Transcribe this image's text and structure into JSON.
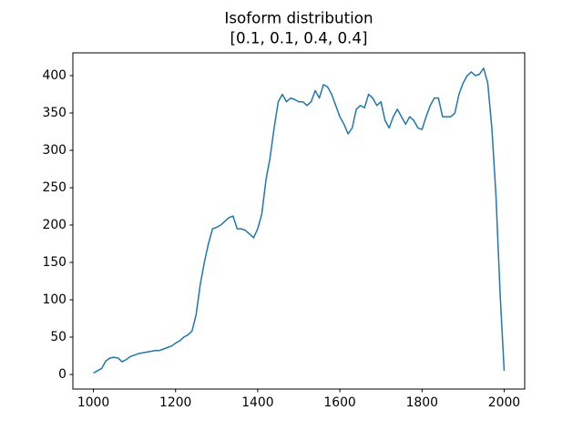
{
  "chart_data": {
    "type": "line",
    "title": "Isoform distribution",
    "subtitle": "[0.1, 0.1, 0.4, 0.4]",
    "x": [
      1000,
      1010,
      1020,
      1030,
      1040,
      1050,
      1060,
      1070,
      1080,
      1090,
      1100,
      1110,
      1120,
      1130,
      1140,
      1150,
      1160,
      1170,
      1180,
      1190,
      1200,
      1210,
      1220,
      1230,
      1240,
      1250,
      1260,
      1270,
      1280,
      1290,
      1300,
      1310,
      1320,
      1330,
      1340,
      1350,
      1360,
      1370,
      1380,
      1390,
      1400,
      1410,
      1420,
      1430,
      1440,
      1450,
      1460,
      1470,
      1480,
      1490,
      1500,
      1510,
      1520,
      1530,
      1540,
      1550,
      1560,
      1570,
      1580,
      1590,
      1600,
      1610,
      1620,
      1630,
      1640,
      1650,
      1660,
      1670,
      1680,
      1690,
      1700,
      1710,
      1720,
      1730,
      1740,
      1750,
      1760,
      1770,
      1780,
      1790,
      1800,
      1810,
      1820,
      1830,
      1840,
      1850,
      1860,
      1870,
      1880,
      1890,
      1900,
      1910,
      1920,
      1930,
      1940,
      1950,
      1960,
      1970,
      1980,
      1990,
      2000
    ],
    "series": [
      {
        "color": "#1f77b4",
        "values": [
          2,
          5,
          8,
          18,
          22,
          23,
          22,
          17,
          20,
          24,
          26,
          28,
          29,
          30,
          31,
          32,
          32,
          34,
          36,
          38,
          42,
          45,
          50,
          53,
          58,
          80,
          120,
          150,
          175,
          195,
          197,
          200,
          205,
          210,
          212,
          195,
          195,
          193,
          188,
          183,
          195,
          215,
          260,
          290,
          330,
          365,
          375,
          365,
          370,
          368,
          365,
          365,
          360,
          365,
          380,
          370,
          388,
          385,
          375,
          360,
          345,
          335,
          322,
          330,
          355,
          360,
          357,
          375,
          370,
          360,
          365,
          340,
          330,
          345,
          355,
          345,
          335,
          345,
          340,
          330,
          328,
          345,
          360,
          370,
          370,
          345,
          345,
          345,
          350,
          375,
          390,
          400,
          405,
          400,
          402,
          410,
          390,
          330,
          240,
          110,
          5
        ]
      }
    ],
    "xlim": [
      950,
      2050
    ],
    "ylim": [
      -19.5,
      430.5
    ],
    "xticks": [
      1000,
      1200,
      1400,
      1600,
      1800,
      2000
    ],
    "yticks": [
      0,
      50,
      100,
      150,
      200,
      250,
      300,
      350,
      400
    ]
  }
}
